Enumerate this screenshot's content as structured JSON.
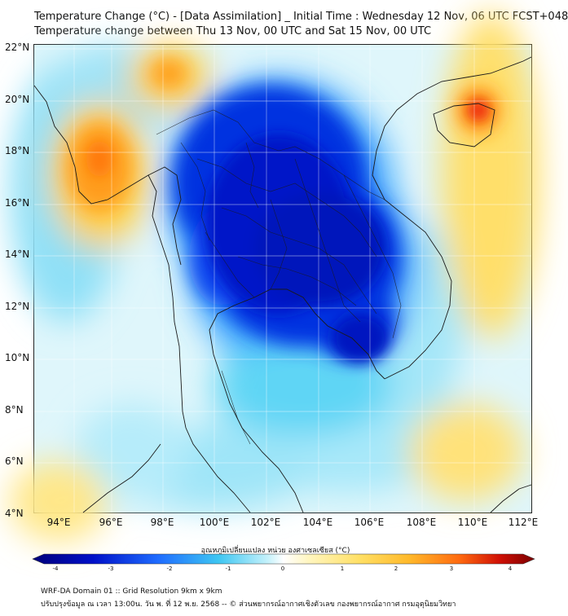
{
  "header": {
    "title_line1": "Temperature Change (°C) - [Data Assimilation] _ Initial Time : Wednesday 12 Nov, 06 UTC FCST+048",
    "title_line2": "Temperature change between Thu 13 Nov, 00 UTC and Sat 15 Nov, 00 UTC"
  },
  "map": {
    "lat_labels": [
      "22°N",
      "20°N",
      "18°N",
      "16°N",
      "14°N",
      "12°N",
      "10°N",
      "8°N",
      "6°N",
      "4°N"
    ],
    "lon_labels": [
      "94°E",
      "96°E",
      "98°E",
      "100°E",
      "102°E",
      "104°E",
      "106°E",
      "108°E",
      "110°E",
      "112°E"
    ]
  },
  "colorbar": {
    "title": "อุณหภูมิเปลี่ยนแปลง หน่วย องศาเซลเซียส (°C)",
    "ticks": [
      "-4",
      "-3",
      "-2",
      "-1",
      "0",
      "1",
      "2",
      "3",
      "4"
    ],
    "range": [
      -4,
      4
    ],
    "colors": {
      "dark_blue": "#00007a",
      "blue": "#0030e0",
      "sky": "#3da8ff",
      "cyan": "#5fd5f5",
      "pale_cyan": "#c7f2fb",
      "white": "#ffffff",
      "pale_yellow": "#fff3b0",
      "yellow": "#ffd84a",
      "orange": "#ff9c1a",
      "red": "#ee2a0a",
      "dark_red": "#7a0000"
    }
  },
  "footer": {
    "line1": "WRF-DA Domain 01 :: Grid Resolution 9km x 9km",
    "line2": "ปรับปรุงข้อมูล ณ เวลา 13:00น. วัน พ. ที่ 12 พ.ย. 2568 -- © ส่วนพยากรณ์อากาศเชิงตัวเลข กองพยากรณ์อากาศ กรมอุตุนิยมวิทยา"
  }
}
